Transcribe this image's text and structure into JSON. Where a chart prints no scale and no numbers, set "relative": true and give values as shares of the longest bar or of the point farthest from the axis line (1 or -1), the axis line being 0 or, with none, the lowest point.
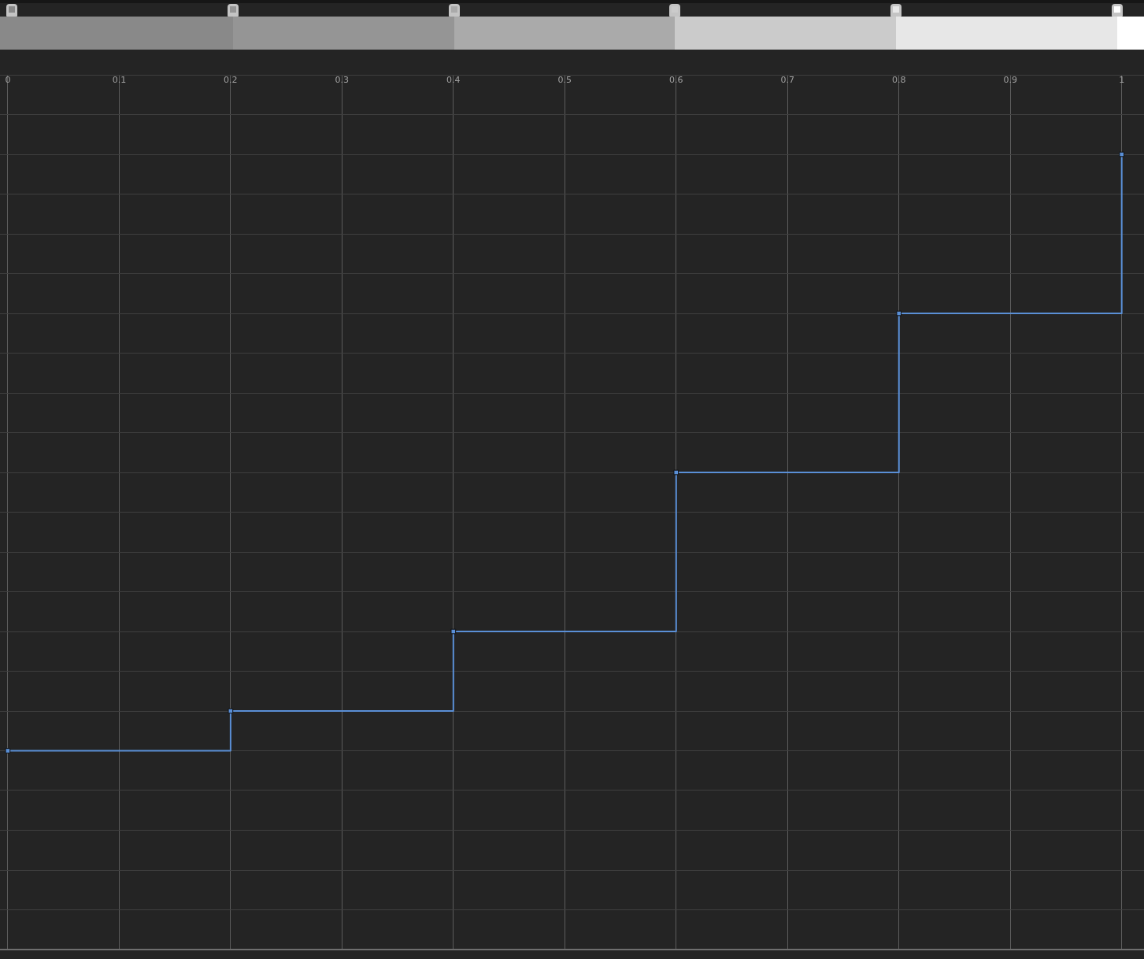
{
  "chart_data": {
    "type": "step",
    "relative": true,
    "x": [
      0,
      0.2,
      0.4,
      0.6,
      0.8,
      1
    ],
    "series": [
      {
        "color": "#5a8fd6",
        "values": [
          0.25,
          0.3,
          0.4,
          0.6,
          0.8,
          1
        ]
      }
    ],
    "xlim": [
      -0.007,
      1.02
    ],
    "xticks": [
      0,
      0.1,
      0.2,
      0.3,
      0.4,
      0.5,
      0.6,
      0.7,
      0.8,
      0.9,
      1
    ],
    "grid": true,
    "marker": "square",
    "line_style": "solid"
  }
}
